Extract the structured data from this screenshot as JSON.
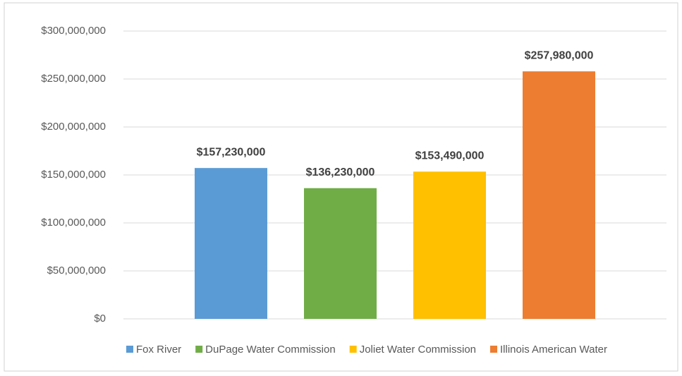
{
  "chart_data": {
    "type": "bar",
    "categories": [
      null
    ],
    "series": [
      {
        "name": "Fox River",
        "color": "#5b9bd5",
        "values": [
          157230000
        ],
        "value_labels": [
          "$157,230,000"
        ]
      },
      {
        "name": "DuPage Water Commission",
        "color": "#70ad47",
        "values": [
          136230000
        ],
        "value_labels": [
          "$136,230,000"
        ]
      },
      {
        "name": "Joliet Water Commission",
        "color": "#ffc000",
        "values": [
          153490000
        ],
        "value_labels": [
          "$153,490,000"
        ]
      },
      {
        "name": "Illinois American Water",
        "color": "#ed7d31",
        "values": [
          257980000
        ],
        "value_labels": [
          "$257,980,000"
        ]
      }
    ],
    "ylim": [
      0,
      300000000
    ],
    "yticks": [
      {
        "value": 0,
        "label": "$0"
      },
      {
        "value": 50000000,
        "label": "$50,000,000"
      },
      {
        "value": 100000000,
        "label": "$100,000,000"
      },
      {
        "value": 150000000,
        "label": "$150,000,000"
      },
      {
        "value": 200000000,
        "label": "$200,000,000"
      },
      {
        "value": 250000000,
        "label": "$250,000,000"
      },
      {
        "value": 300000000,
        "label": "$300,000,000"
      }
    ],
    "grid": true,
    "legend": "bottom"
  }
}
